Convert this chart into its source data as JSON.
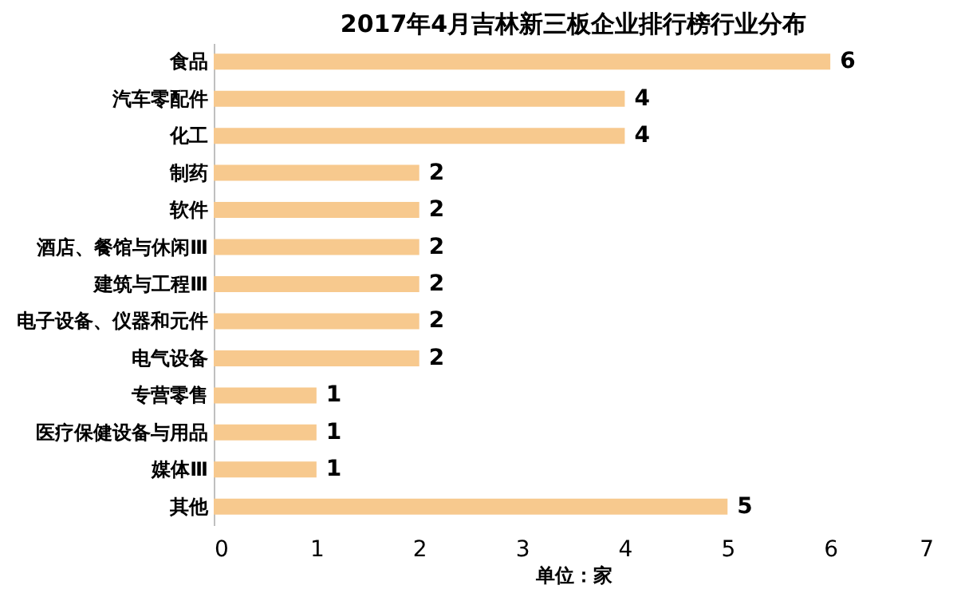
{
  "chart_data": {
    "type": "bar",
    "orientation": "horizontal",
    "title": "2017年4月吉林新三板企业排行榜行业分布",
    "categories": [
      "食品",
      "汽车零配件",
      "化工",
      "制药",
      "软件",
      "酒店、餐馆与休闲Ⅲ",
      "建筑与工程Ⅲ",
      "电子设备、仪器和元件",
      "电气设备",
      "专营零售",
      "医疗保健设备与用品",
      "媒体Ⅲ",
      "其他"
    ],
    "values": [
      6,
      4,
      4,
      2,
      2,
      2,
      2,
      2,
      2,
      1,
      1,
      1,
      5
    ],
    "color": "#f7c98e",
    "xlim": [
      0,
      7
    ],
    "xticks": [
      0,
      1,
      2,
      3,
      4,
      5,
      6,
      7
    ],
    "xlabel": "单位：家",
    "data_labels": true,
    "grid": false
  }
}
